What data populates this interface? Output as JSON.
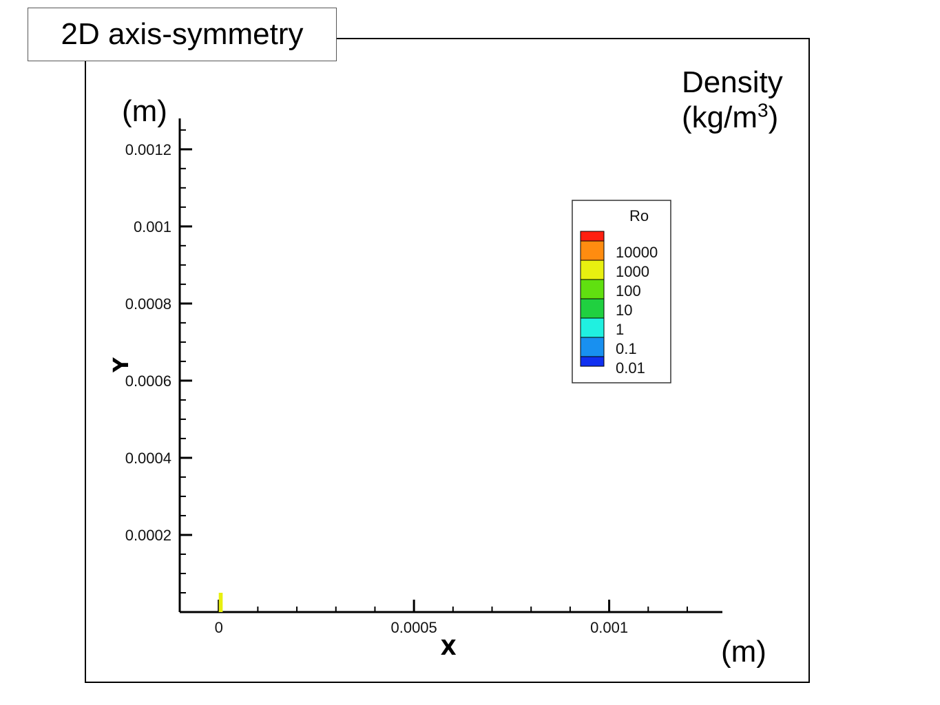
{
  "header": {
    "title": "2D axis-symmetry",
    "density_label_line1": "Density",
    "density_label_unit": "(kg/m",
    "density_label_sup": "3",
    "density_label_close": ")",
    "y_unit": "(m)",
    "x_unit": "(m)"
  },
  "chart_data": {
    "type": "heatmap",
    "title": "",
    "xlabel": "X",
    "ylabel": "Y",
    "xlim": [
      -0.0001,
      0.00129
    ],
    "ylim": [
      0,
      0.00128
    ],
    "x_ticks": [
      {
        "value": 0,
        "label": "0"
      },
      {
        "value": 0.0005,
        "label": "0.0005"
      },
      {
        "value": 0.001,
        "label": "0.001"
      }
    ],
    "y_ticks": [
      {
        "value": 0.0002,
        "label": "0.0002"
      },
      {
        "value": 0.0004,
        "label": "0.0004"
      },
      {
        "value": 0.0006,
        "label": "0.0006"
      },
      {
        "value": 0.0008,
        "label": "0.0008"
      },
      {
        "value": 0.001,
        "label": "0.001"
      },
      {
        "value": 0.0012,
        "label": "0.0012"
      }
    ],
    "x_minor_step": 0.0001,
    "y_minor_step": 5e-05,
    "grid": false,
    "legend": {
      "title": "Ro",
      "placement": "top-right",
      "levels": [
        {
          "label": "",
          "color": "#ff2010"
        },
        {
          "label": "10000",
          "color": "#ff8c10"
        },
        {
          "label": "1000",
          "color": "#e8f010"
        },
        {
          "label": "100",
          "color": "#60e010"
        },
        {
          "label": "10",
          "color": "#20d040"
        },
        {
          "label": "1",
          "color": "#20f0e0"
        },
        {
          "label": "0.1",
          "color": "#1890f0"
        },
        {
          "label": "0.01",
          "color": "#1030f0"
        }
      ]
    },
    "regions": [
      {
        "x": [
          0,
          1e-05
        ],
        "y": [
          0,
          5e-05
        ],
        "color": "#e8f010",
        "level": "1000"
      }
    ]
  }
}
